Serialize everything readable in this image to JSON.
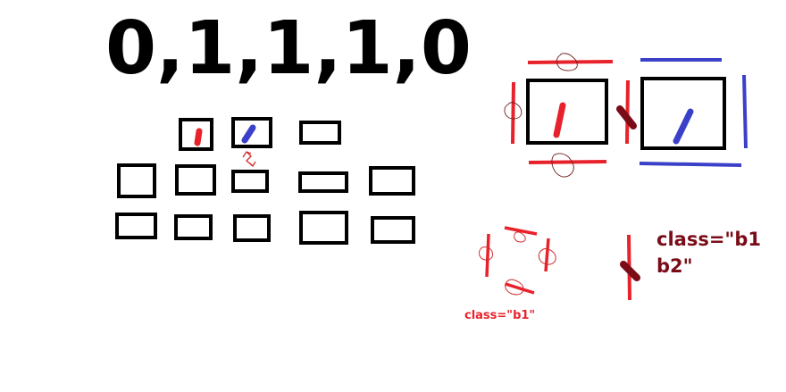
{
  "title": "0,1,1,1,0",
  "labels": {
    "b1": "class=\"b1\"",
    "b1b2_line1": "class=\"b1",
    "b1b2_line2": "b2\""
  },
  "colors": {
    "border": "#000000",
    "red": "#e8222b",
    "blue": "#3b40c8",
    "dark_red": "#7a0c18",
    "ink": "#000000"
  }
}
